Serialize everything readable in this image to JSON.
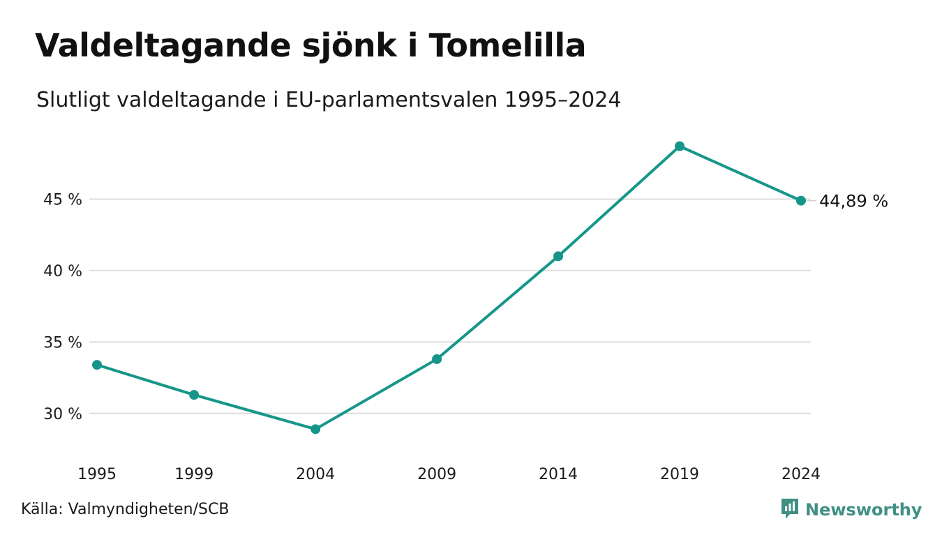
{
  "header": {
    "title": "Valdeltagande sjönk i Tomelilla",
    "subtitle": "Slutligt valdeltagande i EU-parlamentsvalen 1995–2024"
  },
  "footer": {
    "source": "Källa: Valmyndigheten/SCB",
    "brand": "Newsworthy"
  },
  "colors": {
    "line": "#16968a",
    "grid": "#dddddd",
    "brand": "#3f8f84"
  },
  "chart_data": {
    "type": "line",
    "title": "Valdeltagande sjönk i Tomelilla",
    "subtitle": "Slutligt valdeltagande i EU-parlamentsvalen 1995–2024",
    "xlabel": "",
    "ylabel": "",
    "categories": [
      "1995",
      "1999",
      "2004",
      "2009",
      "2014",
      "2019",
      "2024"
    ],
    "x": [
      1995,
      1999,
      2004,
      2009,
      2014,
      2019,
      2024
    ],
    "series": [
      {
        "values": [
          33.4,
          31.3,
          28.9,
          33.8,
          41.0,
          48.7,
          44.89
        ]
      }
    ],
    "ylim": [
      27.5,
      50
    ],
    "yticks": [
      30,
      35,
      40,
      45
    ],
    "ytick_labels": [
      "30 %",
      "35 %",
      "40 %",
      "45 %"
    ],
    "end_label": "44,89 %",
    "grid": true,
    "legend": "none"
  }
}
